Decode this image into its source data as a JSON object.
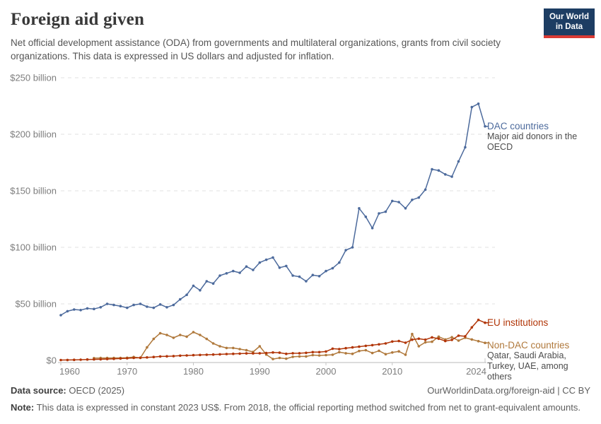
{
  "header": {
    "title": "Foreign aid given",
    "subtitle": "Net official development assistance (ODA) from governments and multilateral organizations, grants from civil society organizations. This data is expressed in US dollars and adjusted for inflation.",
    "logo": {
      "line1": "Our World",
      "line2": "in Data",
      "bg_color": "#1d3d63",
      "stripe_color": "#d93a34"
    }
  },
  "chart_data": {
    "type": "line",
    "title": "Foreign aid given",
    "xlabel": "",
    "ylabel": "",
    "x_range": [
      1960,
      2024
    ],
    "ylim": [
      0,
      250
    ],
    "grid": "horizontal dashed",
    "legend_position": "right-end-labels",
    "x_ticks": [
      1960,
      1970,
      1980,
      1990,
      2000,
      2010,
      2024
    ],
    "y_ticks": [
      {
        "value": 0,
        "label": "$0"
      },
      {
        "value": 50,
        "label": "$50 billion"
      },
      {
        "value": 100,
        "label": "$100 billion"
      },
      {
        "value": 150,
        "label": "$150 billion"
      },
      {
        "value": 200,
        "label": "$200 billion"
      },
      {
        "value": 250,
        "label": "$250 billion"
      }
    ],
    "unit": "billion US$ (constant 2023)",
    "series": [
      {
        "name": "DAC countries",
        "annotation": "Major aid donors in the OECD",
        "color": "#4C6A9C",
        "start_year": 1960,
        "values": [
          40,
          43.5,
          45,
          44.5,
          46,
          45.5,
          47,
          50,
          49,
          48,
          46.5,
          49,
          50,
          47.5,
          46.5,
          49.5,
          47,
          49,
          54,
          58,
          66,
          62,
          70,
          68,
          75,
          77,
          79,
          77.5,
          83,
          80,
          86.5,
          89,
          91,
          82,
          83.5,
          75,
          74,
          70,
          75.5,
          74.5,
          79,
          81.5,
          86.5,
          97.5,
          100,
          134.5,
          127,
          117,
          130,
          131.5,
          141,
          140,
          134.5,
          142,
          144,
          151,
          169,
          168,
          164.5,
          162.5,
          176,
          188.5,
          224,
          227,
          207
        ]
      },
      {
        "name": "EU institutions",
        "annotation": "",
        "color": "#B13507",
        "start_year": 1960,
        "values": [
          0.3,
          0.4,
          0.5,
          0.6,
          0.8,
          0.9,
          1,
          1.2,
          1.4,
          1.6,
          1.9,
          2.2,
          2.4,
          2.6,
          3,
          3.5,
          3.6,
          3.8,
          4.2,
          4.4,
          4.6,
          4.8,
          5,
          5.2,
          5.4,
          5.6,
          5.8,
          6,
          6.2,
          6.2,
          6.3,
          6.5,
          7,
          6.8,
          5.8,
          6.3,
          6.3,
          6.7,
          7.3,
          7.3,
          7.9,
          10.4,
          10,
          10.8,
          11.5,
          12.1,
          12.9,
          13.5,
          14.2,
          15,
          16.7,
          17.1,
          15.6,
          18.3,
          19.2,
          18.3,
          20.4,
          19.2,
          17.1,
          18.1,
          21.9,
          21.3,
          29.2,
          35.8,
          33.3
        ]
      },
      {
        "name": "Non-DAC countries",
        "annotation": "Qatar, Saudi Arabia, Turkey, UAE, among others",
        "color": "#B0793C",
        "start_year": 1965,
        "values": [
          2,
          2.1,
          2.1,
          2.2,
          2.2,
          2.3,
          3,
          2.2,
          11.5,
          19,
          24,
          22.5,
          20,
          22.5,
          21,
          25,
          22.5,
          19,
          15,
          12.5,
          11,
          11,
          10,
          9,
          7.5,
          12.5,
          5.2,
          1.2,
          2.2,
          1.5,
          3.2,
          3.5,
          3.5,
          4.7,
          4.4,
          4.7,
          5,
          7.3,
          6.3,
          5.8,
          8.3,
          9,
          6.5,
          8.5,
          5.5,
          7,
          8,
          5,
          23.3,
          12.5,
          16,
          16.5,
          21,
          18.5,
          20.5,
          17.5,
          20,
          18.5,
          17,
          15.5
        ]
      }
    ]
  },
  "footer": {
    "source_bold": "Data source:",
    "source_rest": " OECD (2025)",
    "link": "OurWorldinData.org/foreign-aid | CC BY",
    "note_bold": "Note:",
    "note_rest": " This data is expressed in constant 2023 US$. From 2018, the official reporting method switched from net to grant-equivalent amounts."
  }
}
